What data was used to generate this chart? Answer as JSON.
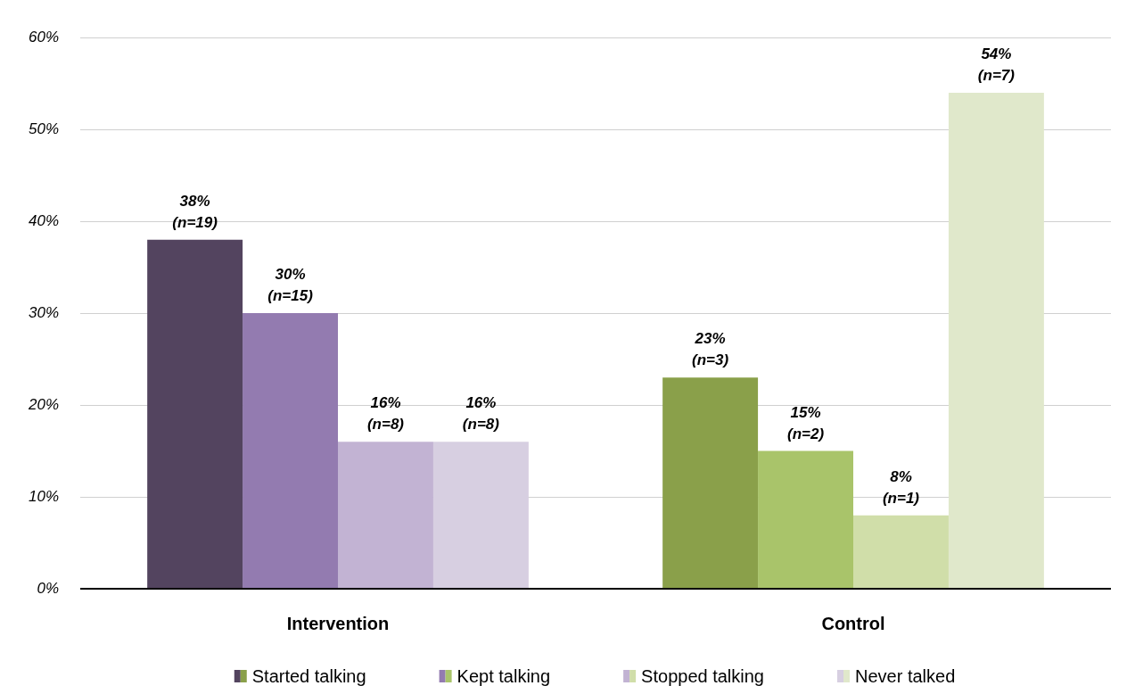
{
  "chart_data": {
    "type": "bar",
    "categories": [
      "Intervention",
      "Control"
    ],
    "series": [
      {
        "name": "Started talking",
        "colors": [
          "#53445f",
          "#8aa04a"
        ],
        "values": [
          38,
          23
        ],
        "value_labels": [
          "38%\n(n=19)",
          "23%\n(n=3)"
        ]
      },
      {
        "name": "Kept talking",
        "colors": [
          "#937bb0",
          "#a9c46a"
        ],
        "values": [
          30,
          15
        ],
        "value_labels": [
          "30%\n(n=15)",
          "15%\n(n=2)"
        ]
      },
      {
        "name": "Stopped talking",
        "colors": [
          "#c2b3d3",
          "#d0dea9"
        ],
        "values": [
          16,
          8
        ],
        "value_labels": [
          "16%\n(n=8)",
          "8%\n(n=1)"
        ]
      },
      {
        "name": "Never talked",
        "colors": [
          "#d7cfe1",
          "#e0e8cb"
        ],
        "values": [
          16,
          54
        ],
        "value_labels": [
          "16%\n(n=8)",
          "54%\n(n=7)"
        ]
      }
    ],
    "ylim": [
      0,
      60
    ],
    "yticks": [
      {
        "value": 0,
        "label": "0%"
      },
      {
        "value": 10,
        "label": "10%"
      },
      {
        "value": 20,
        "label": "20%"
      },
      {
        "value": 30,
        "label": "30%"
      },
      {
        "value": 40,
        "label": "40%"
      },
      {
        "value": 50,
        "label": "50%"
      },
      {
        "value": 60,
        "label": "60%"
      }
    ],
    "grid": "y",
    "legend": "bottom"
  }
}
